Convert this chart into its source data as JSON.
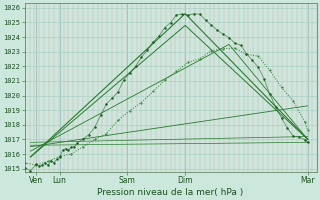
{
  "xlabel": "Pression niveau de la mer( hPa )",
  "bg_color": "#cce8dc",
  "grid_major_color": "#aacfc4",
  "grid_minor_color": "#bbddd4",
  "vgrid_color": "#d4a0a8",
  "line_dark": "#1a5c20",
  "line_mid": "#2a7a30",
  "ylim": [
    1014.8,
    1026.3
  ],
  "xlim": [
    0,
    1.0
  ],
  "yticks": [
    1015,
    1016,
    1017,
    1018,
    1019,
    1020,
    1021,
    1022,
    1023,
    1024,
    1025,
    1026
  ],
  "xtick_labels": [
    "Ven",
    "Lun",
    "Sam",
    "Dim",
    "Mar"
  ],
  "xtick_pos": [
    0.04,
    0.12,
    0.35,
    0.55,
    0.97
  ],
  "vlines": [
    0.04,
    0.12,
    0.35,
    0.55,
    0.97
  ],
  "dotted_main": {
    "x": [
      0.0,
      0.02,
      0.04,
      0.05,
      0.06,
      0.07,
      0.08,
      0.09,
      0.1,
      0.11,
      0.12,
      0.13,
      0.14,
      0.15,
      0.16,
      0.17,
      0.18,
      0.2,
      0.22,
      0.24,
      0.26,
      0.28,
      0.3,
      0.32,
      0.34,
      0.36,
      0.38,
      0.4,
      0.42,
      0.44,
      0.46,
      0.48,
      0.5,
      0.52,
      0.54,
      0.56,
      0.58,
      0.6,
      0.62,
      0.64,
      0.66,
      0.68,
      0.7,
      0.72,
      0.74,
      0.76,
      0.78,
      0.8,
      0.82,
      0.84,
      0.86,
      0.88,
      0.9,
      0.92,
      0.94,
      0.96,
      0.97
    ],
    "y": [
      1015.1,
      1015.1,
      1015.2,
      1015.2,
      1015.3,
      1015.3,
      1015.4,
      1015.5,
      1015.6,
      1015.7,
      1015.9,
      1016.1,
      1016.2,
      1016.3,
      1016.4,
      1016.5,
      1016.7,
      1017.1,
      1017.5,
      1018.0,
      1018.6,
      1019.2,
      1019.8,
      1020.3,
      1020.9,
      1021.5,
      1022.0,
      1022.6,
      1023.1,
      1023.7,
      1024.2,
      1024.6,
      1025.0,
      1025.4,
      1025.6,
      1025.7,
      1025.6,
      1025.4,
      1025.2,
      1024.9,
      1024.6,
      1024.3,
      1024.0,
      1023.7,
      1023.3,
      1022.9,
      1022.4,
      1021.8,
      1021.0,
      1020.1,
      1019.2,
      1018.4,
      1017.8,
      1017.4,
      1017.1,
      1016.9,
      1016.8
    ]
  },
  "dotted_second": {
    "x": [
      0.0,
      0.04,
      0.08,
      0.12,
      0.16,
      0.2,
      0.24,
      0.28,
      0.32,
      0.36,
      0.4,
      0.44,
      0.48,
      0.52,
      0.56,
      0.6,
      0.64,
      0.68,
      0.72,
      0.76,
      0.8,
      0.84,
      0.88,
      0.92,
      0.96,
      0.97
    ],
    "y": [
      1015.2,
      1015.3,
      1015.5,
      1015.8,
      1016.1,
      1016.5,
      1017.0,
      1017.6,
      1018.2,
      1018.9,
      1019.6,
      1020.3,
      1021.0,
      1021.7,
      1022.3,
      1022.7,
      1023.0,
      1023.2,
      1023.2,
      1023.0,
      1022.5,
      1021.7,
      1020.6,
      1019.4,
      1018.2,
      1017.8
    ]
  },
  "straight_lines": [
    {
      "x": [
        0.02,
        0.55,
        0.97
      ],
      "y": [
        1015.8,
        1025.6,
        1017.0
      ],
      "lw": 0.8
    },
    {
      "x": [
        0.02,
        0.55,
        0.97
      ],
      "y": [
        1015.8,
        1024.8,
        1017.0
      ],
      "lw": 0.7
    },
    {
      "x": [
        0.02,
        0.7,
        0.97
      ],
      "y": [
        1016.2,
        1023.5,
        1017.0
      ],
      "lw": 0.6
    },
    {
      "x": [
        0.02,
        0.97
      ],
      "y": [
        1016.5,
        1019.3
      ],
      "lw": 0.6
    },
    {
      "x": [
        0.02,
        0.97
      ],
      "y": [
        1016.8,
        1017.2
      ],
      "lw": 0.5
    },
    {
      "x": [
        0.02,
        0.97
      ],
      "y": [
        1016.6,
        1016.8
      ],
      "lw": 0.5
    }
  ]
}
